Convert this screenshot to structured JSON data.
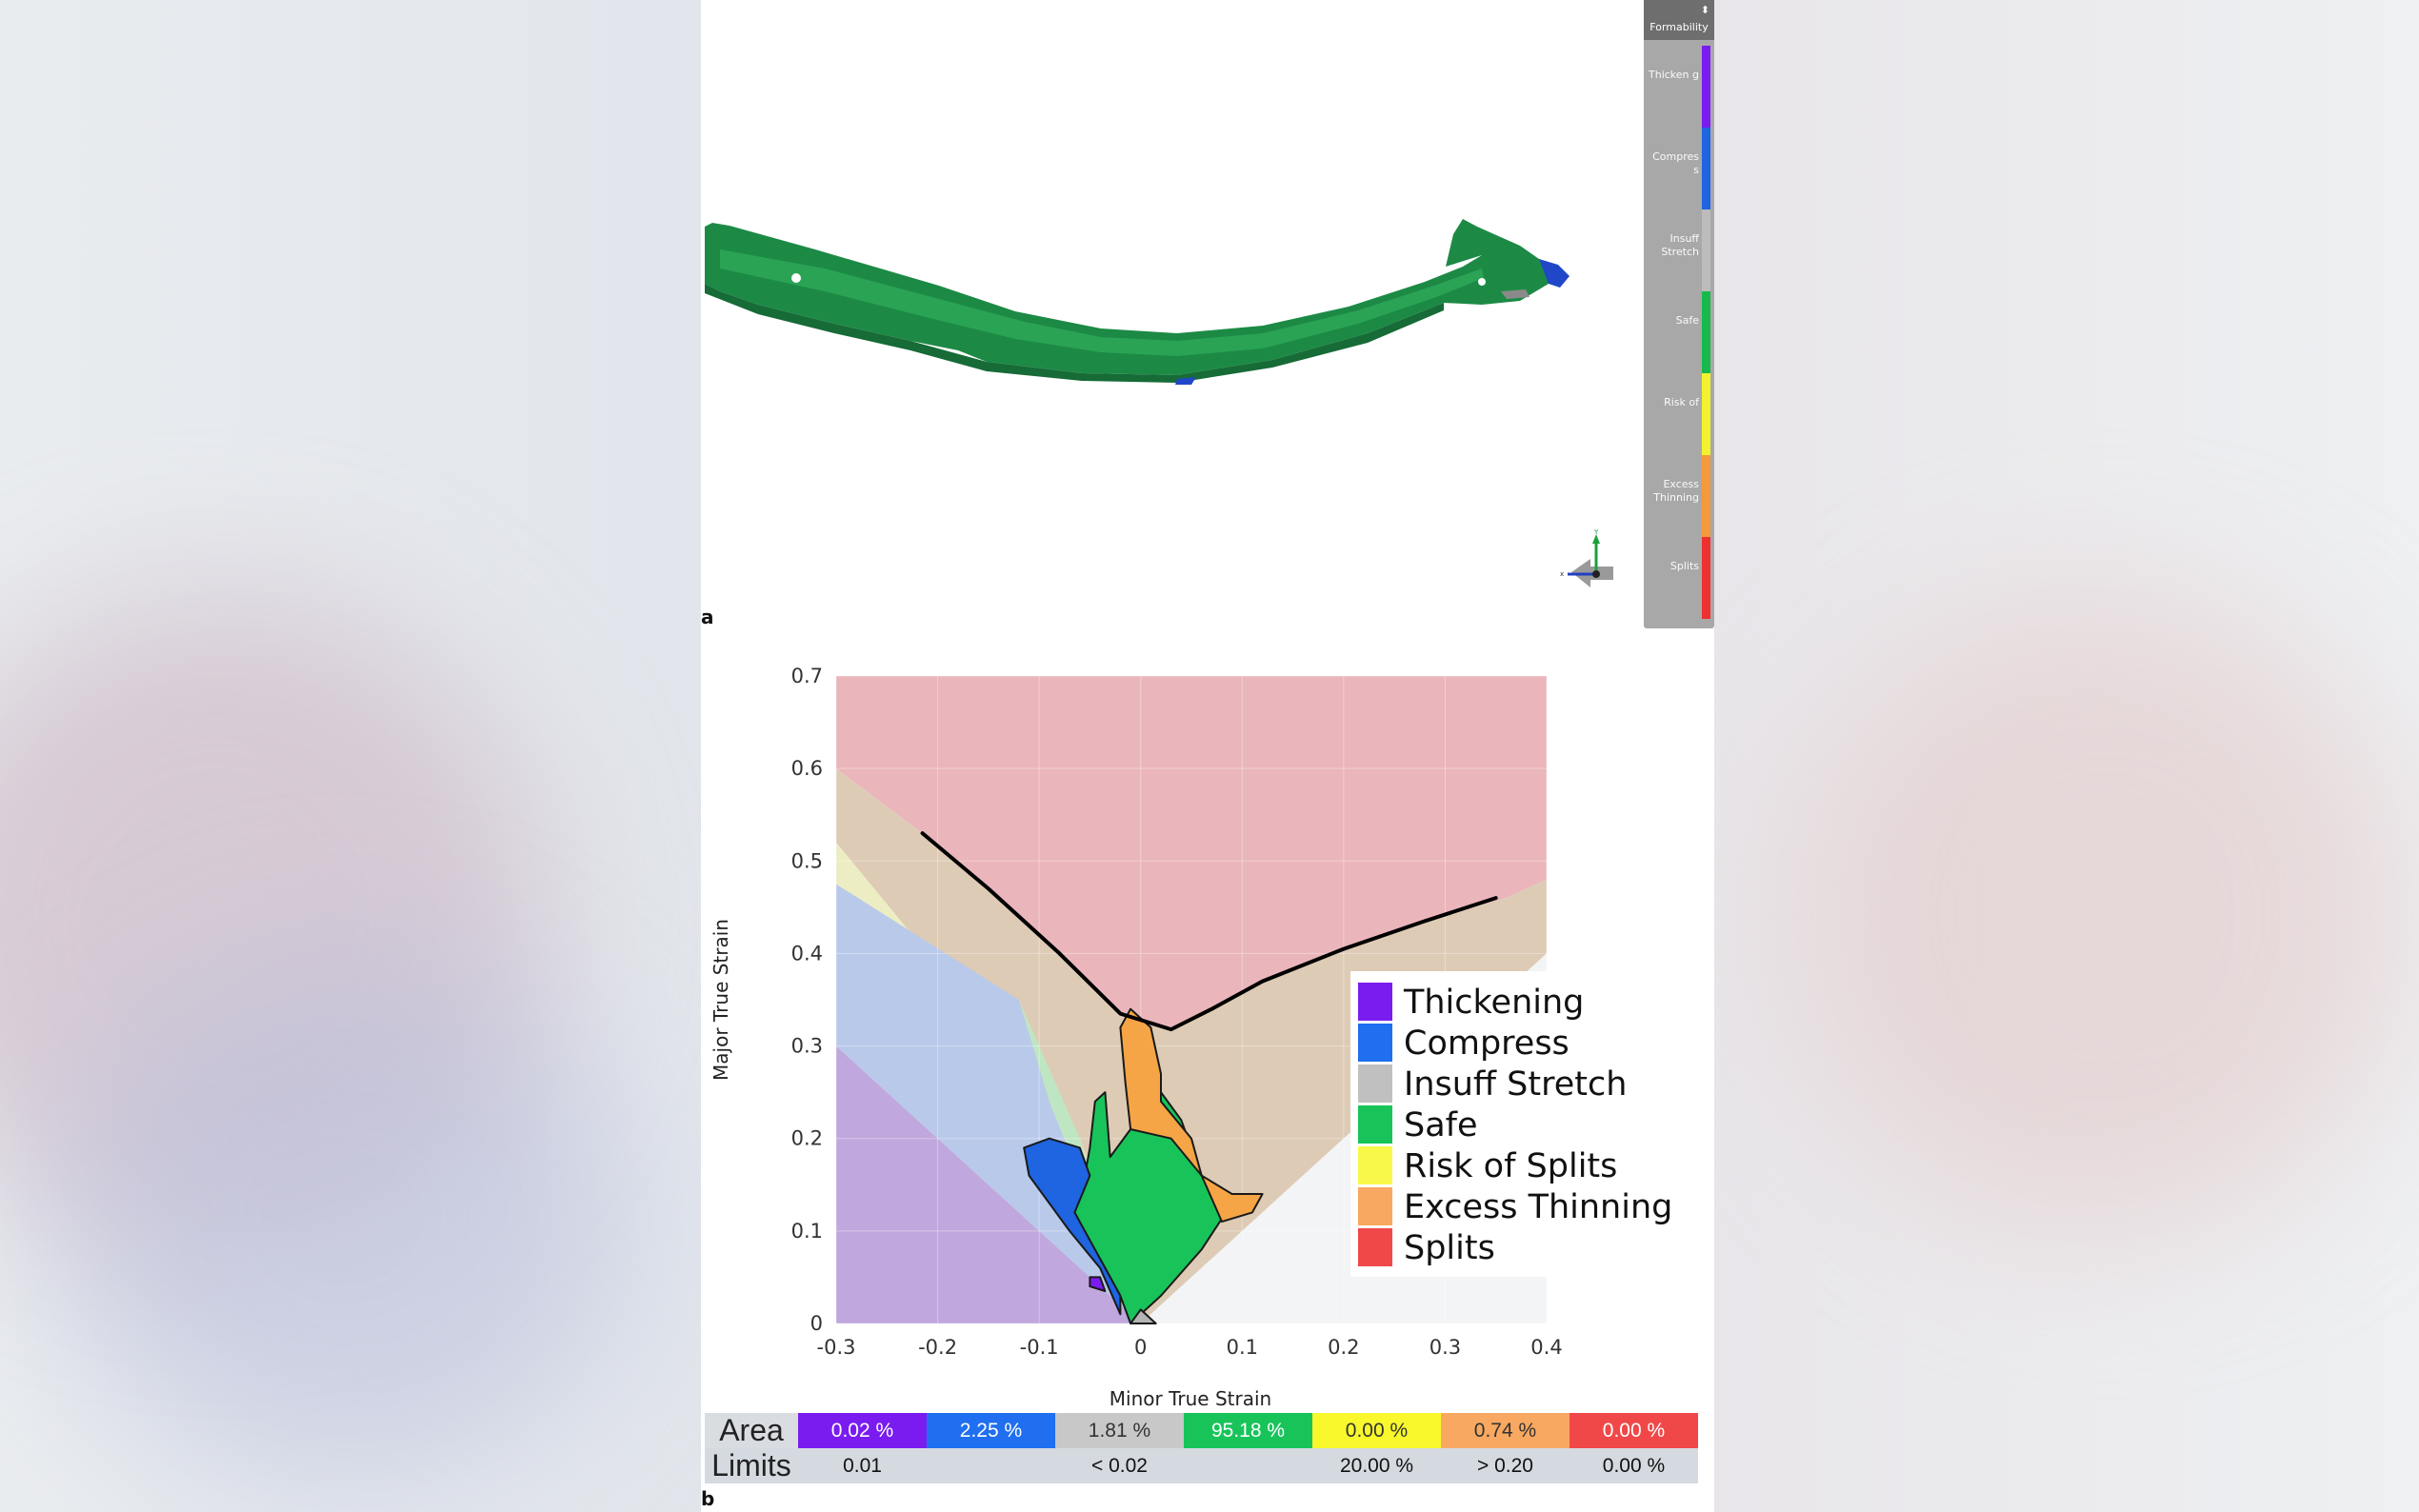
{
  "panels": {
    "a": "a",
    "b": "b"
  },
  "legend_bar": {
    "header": "Formability",
    "pin": "⬍",
    "items": [
      {
        "label": "Thicken g",
        "color": "#7a1cf0"
      },
      {
        "label": "Compres s",
        "color": "#1f64e0"
      },
      {
        "label": "Insuff Stretch",
        "color": "#bcbcbc"
      },
      {
        "label": "Safe",
        "color": "#18b94c"
      },
      {
        "label": "Risk of",
        "color": "#f4f22c"
      },
      {
        "label": "Excess Thinning",
        "color": "#f59a3c"
      },
      {
        "label": "Splits",
        "color": "#ee3030"
      }
    ]
  },
  "gizmo": {
    "x_label": "x",
    "y_label": "Y",
    "z_label": "z"
  },
  "part_colors": {
    "body": "#1c8a45",
    "highlight": "#2aa355",
    "shadow": "#166b36",
    "accent_blue": "#1f47c8",
    "accent_grey": "#8a8a8a"
  },
  "chart_data": {
    "type": "scatter",
    "title": "",
    "xlabel": "Minor True Strain",
    "ylabel": "Major True Strain",
    "xlim": [
      -0.3,
      0.4
    ],
    "ylim": [
      0,
      0.7
    ],
    "xticks": [
      -0.3,
      -0.2,
      -0.1,
      0,
      0.1,
      0.2,
      0.3,
      0.4
    ],
    "xtick_labels": [
      "-0.3",
      "-0.2",
      "-0.1",
      "0",
      "0.1",
      "0.2",
      "0.3",
      "0.4"
    ],
    "yticks": [
      0,
      0.1,
      0.2,
      0.3,
      0.4,
      0.5,
      0.6,
      0.7
    ],
    "ytick_labels": [
      "0",
      "0.1",
      "0.2",
      "0.3",
      "0.4",
      "0.5",
      "0.6",
      "0.7"
    ],
    "grid": true,
    "legend_position": "right",
    "forming_limit_curve": {
      "color": "#000000",
      "points": [
        [
          -0.215,
          0.53
        ],
        [
          -0.15,
          0.47
        ],
        [
          -0.08,
          0.4
        ],
        [
          -0.02,
          0.335
        ],
        [
          0.03,
          0.318
        ],
        [
          0.07,
          0.34
        ],
        [
          0.12,
          0.37
        ],
        [
          0.2,
          0.405
        ],
        [
          0.28,
          0.435
        ],
        [
          0.35,
          0.46
        ]
      ]
    },
    "zones": [
      {
        "name": "Splits",
        "color": "#eab6bb",
        "polygon": [
          [
            -0.3,
            0.7
          ],
          [
            0.4,
            0.7
          ],
          [
            0.4,
            0.48
          ],
          [
            0.36,
            0.46
          ],
          [
            0.28,
            0.435
          ],
          [
            0.2,
            0.405
          ],
          [
            0.12,
            0.37
          ],
          [
            0.07,
            0.34
          ],
          [
            0.03,
            0.318
          ],
          [
            -0.02,
            0.335
          ],
          [
            -0.08,
            0.4
          ],
          [
            -0.15,
            0.47
          ],
          [
            -0.215,
            0.53
          ],
          [
            -0.3,
            0.6
          ]
        ]
      },
      {
        "name": "Excess Thinning",
        "color": "#decbb5",
        "polygon": [
          [
            -0.3,
            0.6
          ],
          [
            -0.215,
            0.53
          ],
          [
            -0.15,
            0.47
          ],
          [
            -0.08,
            0.4
          ],
          [
            -0.02,
            0.335
          ],
          [
            0.03,
            0.318
          ],
          [
            0.07,
            0.34
          ],
          [
            0.12,
            0.37
          ],
          [
            0.2,
            0.405
          ],
          [
            0.28,
            0.435
          ],
          [
            0.36,
            0.46
          ],
          [
            0.4,
            0.48
          ],
          [
            0.4,
            0.4
          ],
          [
            0.0,
            0.0
          ],
          [
            -0.06,
            0.2
          ],
          [
            -0.3,
            0.52
          ]
        ]
      },
      {
        "name": "Risk of Splits",
        "color": "#ededc4",
        "polygon": [
          [
            -0.3,
            0.52
          ],
          [
            -0.06,
            0.2
          ],
          [
            -0.05,
            0.17
          ],
          [
            -0.3,
            0.475
          ]
        ]
      },
      {
        "name": "Safe",
        "color": "#bfe6c2",
        "polygon": [
          [
            -0.12,
            0.35
          ],
          [
            -0.06,
            0.2
          ],
          [
            0.0,
            0.0
          ],
          [
            -0.02,
            0.05
          ],
          [
            -0.09,
            0.24
          ]
        ]
      },
      {
        "name": "Compress",
        "color": "#b9c9ea",
        "polygon": [
          [
            -0.3,
            0.475
          ],
          [
            -0.12,
            0.35
          ],
          [
            -0.09,
            0.24
          ],
          [
            -0.02,
            0.05
          ],
          [
            0.0,
            0.0
          ],
          [
            -0.3,
            0.3
          ]
        ]
      },
      {
        "name": "Thickening",
        "color": "#c0a8de",
        "polygon": [
          [
            -0.3,
            0.3
          ],
          [
            0.0,
            0.0
          ],
          [
            -0.3,
            0.0
          ]
        ]
      },
      {
        "name": "Insuff Stretch",
        "color": "#f3f4f6",
        "polygon": [
          [
            0.0,
            0.0
          ],
          [
            0.4,
            0.4
          ],
          [
            0.4,
            0.0
          ]
        ]
      }
    ],
    "strain_cloud": [
      {
        "name": "Safe",
        "color": "#18c45a",
        "polygon": [
          [
            -0.01,
            0.0
          ],
          [
            0.02,
            0.03
          ],
          [
            0.06,
            0.08
          ],
          [
            0.09,
            0.13
          ],
          [
            0.06,
            0.16
          ],
          [
            0.04,
            0.22
          ],
          [
            0.02,
            0.25
          ],
          [
            -0.01,
            0.21
          ],
          [
            -0.03,
            0.18
          ],
          [
            -0.035,
            0.25
          ],
          [
            -0.045,
            0.24
          ],
          [
            -0.05,
            0.19
          ],
          [
            -0.055,
            0.16
          ],
          [
            -0.07,
            0.12
          ],
          [
            -0.04,
            0.07
          ],
          [
            -0.02,
            0.03
          ]
        ]
      },
      {
        "name": "Compress",
        "color": "#1f64e0",
        "polygon": [
          [
            -0.02,
            0.01
          ],
          [
            -0.04,
            0.06
          ],
          [
            -0.07,
            0.1
          ],
          [
            -0.11,
            0.16
          ],
          [
            -0.115,
            0.19
          ],
          [
            -0.09,
            0.2
          ],
          [
            -0.06,
            0.19
          ],
          [
            -0.05,
            0.16
          ],
          [
            -0.065,
            0.12
          ],
          [
            -0.04,
            0.07
          ],
          [
            -0.02,
            0.03
          ]
        ]
      },
      {
        "name": "Excess Thinning",
        "color": "#f5a545",
        "polygon": [
          [
            -0.01,
            0.21
          ],
          [
            -0.015,
            0.26
          ],
          [
            -0.02,
            0.32
          ],
          [
            -0.01,
            0.34
          ],
          [
            0.01,
            0.32
          ],
          [
            0.02,
            0.27
          ],
          [
            0.02,
            0.24
          ],
          [
            0.035,
            0.22
          ],
          [
            0.05,
            0.2
          ],
          [
            0.06,
            0.16
          ],
          [
            0.09,
            0.14
          ],
          [
            0.12,
            0.14
          ],
          [
            0.11,
            0.12
          ],
          [
            0.08,
            0.11
          ],
          [
            0.06,
            0.16
          ],
          [
            0.03,
            0.2
          ]
        ]
      },
      {
        "name": "Thickening",
        "color": "#7a1cf0",
        "polygon": [
          [
            -0.05,
            0.05
          ],
          [
            -0.04,
            0.05
          ],
          [
            -0.035,
            0.035
          ],
          [
            -0.05,
            0.04
          ]
        ]
      },
      {
        "name": "Insuff Stretch",
        "color": "#b5b5b5",
        "polygon": [
          [
            -0.01,
            0.0
          ],
          [
            0.015,
            0.0
          ],
          [
            0.0,
            0.015
          ]
        ]
      }
    ],
    "legend": [
      {
        "name": "Thickening",
        "color": "#7a1cf0"
      },
      {
        "name": "Compress",
        "color": "#1f6ff0"
      },
      {
        "name": "Insuff Stretch",
        "color": "#c0c0c0"
      },
      {
        "name": "Safe",
        "color": "#18c45a"
      },
      {
        "name": "Risk of Splits",
        "color": "#f8f84a"
      },
      {
        "name": "Excess Thinning",
        "color": "#f8a860"
      },
      {
        "name": "Splits",
        "color": "#f04848"
      }
    ]
  },
  "area_table": {
    "row_area_label": "Area",
    "row_limits_label": "Limits",
    "area": [
      {
        "value": "0.02 %",
        "color": "#7a1cf0"
      },
      {
        "value": "2.25 %",
        "color": "#1f6ff0"
      },
      {
        "value": "1.81 %",
        "color": "#c8c8c8"
      },
      {
        "value": "95.18 %",
        "color": "#18c45a"
      },
      {
        "value": "0.00 %",
        "color": "#f8f82c"
      },
      {
        "value": "0.74 %",
        "color": "#f8a860"
      },
      {
        "value": "0.00 %",
        "color": "#f04848"
      }
    ],
    "limits": [
      "0.01",
      "",
      "< 0.02",
      "",
      "20.00 %",
      "> 0.20",
      "0.00 %"
    ]
  }
}
